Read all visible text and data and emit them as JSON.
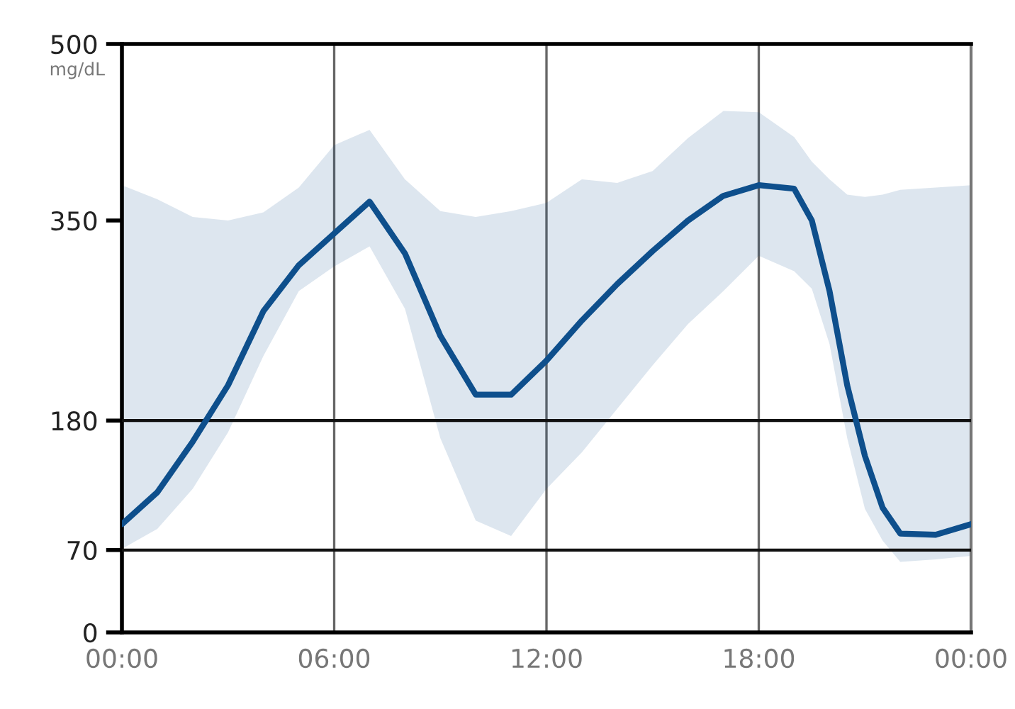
{
  "chart_data": {
    "type": "line",
    "ylabel": "mg/dL",
    "x": [
      0,
      1,
      2,
      3,
      4,
      5,
      6,
      7,
      8,
      9,
      10,
      11,
      12,
      13,
      14,
      15,
      16,
      17,
      18,
      19,
      19.5,
      20,
      20.5,
      21,
      21.5,
      22,
      23,
      24
    ],
    "series": [
      {
        "color": "#0e4f8c",
        "values": [
          92,
          119,
          162,
          210,
          273,
          312,
          339,
          366,
          322,
          252,
          202,
          202,
          231,
          265,
          296,
          324,
          350,
          371,
          380,
          377,
          350,
          290,
          210,
          150,
          106,
          84,
          83,
          92
        ],
        "upper": [
          380,
          368,
          353,
          350,
          357,
          378,
          414,
          427,
          385,
          358,
          353,
          358,
          365,
          385,
          382,
          392,
          420,
          443,
          442,
          421,
          400,
          385,
          372,
          370,
          372,
          376,
          378,
          380
        ],
        "lower": [
          71,
          88,
          122,
          170,
          235,
          290,
          311,
          328,
          275,
          165,
          95,
          82,
          122,
          153,
          190,
          227,
          262,
          290,
          320,
          307,
          292,
          245,
          165,
          105,
          78,
          60,
          62,
          65
        ]
      }
    ],
    "xlim": [
      0,
      24
    ],
    "xticks": [
      {
        "value": 0,
        "label": "00:00"
      },
      {
        "value": 6,
        "label": "06:00"
      },
      {
        "value": 12,
        "label": "12:00"
      },
      {
        "value": 18,
        "label": "18:00"
      },
      {
        "value": 24,
        "label": "00:00"
      }
    ],
    "ylim": [
      0,
      500
    ],
    "yticks": [
      0,
      70,
      180,
      350,
      500
    ],
    "ref_lines": [
      {
        "axis": "y",
        "value": 70,
        "color": "#111111"
      },
      {
        "axis": "y",
        "value": 180,
        "color": "#111111"
      }
    ],
    "grid": "x",
    "legend": false,
    "marker": "none",
    "line_style": "solid"
  }
}
